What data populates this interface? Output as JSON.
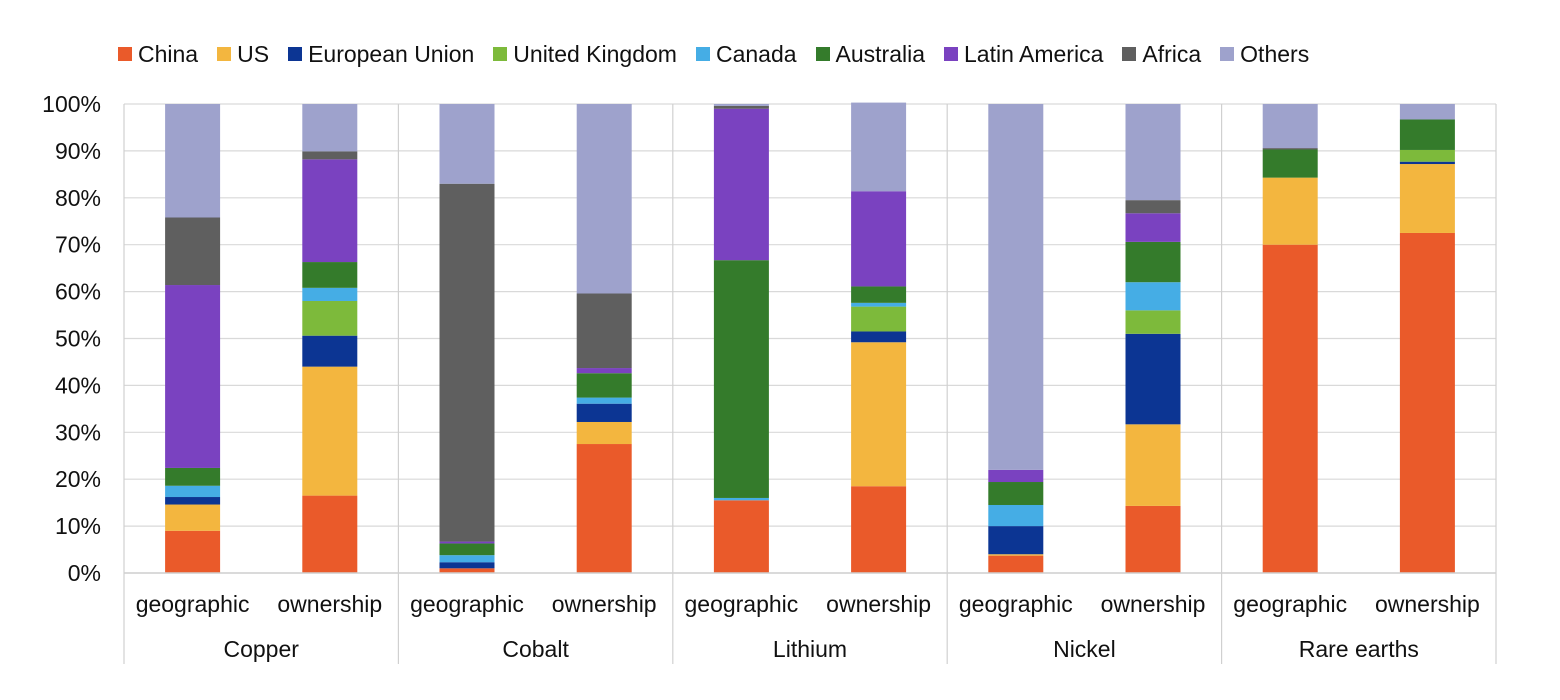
{
  "chart_data": {
    "type": "bar",
    "stacked": true,
    "percent": true,
    "groups": [
      "Copper",
      "Cobalt",
      "Lithium",
      "Nickel",
      "Rare earths"
    ],
    "subcategories": [
      "geographic",
      "ownership"
    ],
    "y_tick_labels": [
      "0%",
      "10%",
      "20%",
      "30%",
      "40%",
      "50%",
      "60%",
      "70%",
      "80%",
      "90%",
      "100%"
    ],
    "ylim": [
      0,
      100
    ],
    "grid": true,
    "legend_position": "top",
    "series": [
      {
        "name": "China",
        "color": "#ea5a2a",
        "values": [
          [
            9,
            16.5
          ],
          [
            1,
            27.5
          ],
          [
            15.5,
            18.5
          ],
          [
            3.7,
            14.3
          ],
          [
            70,
            72.5
          ]
        ]
      },
      {
        "name": "US",
        "color": "#f3b63f",
        "values": [
          [
            5.6,
            27.5
          ],
          [
            0,
            4.7
          ],
          [
            0,
            30.7
          ],
          [
            0.3,
            17.4
          ],
          [
            14.3,
            14.7
          ]
        ]
      },
      {
        "name": "European Union",
        "color": "#0c3593",
        "values": [
          [
            1.6,
            6.6
          ],
          [
            1.3,
            3.9
          ],
          [
            0,
            2.3
          ],
          [
            6,
            19.3
          ],
          [
            0,
            0.5
          ]
        ]
      },
      {
        "name": "United Kingdom",
        "color": "#7dba3b",
        "values": [
          [
            0,
            7.4
          ],
          [
            0,
            0
          ],
          [
            0,
            5.3
          ],
          [
            0,
            5
          ],
          [
            0,
            2.5
          ]
        ]
      },
      {
        "name": "Canada",
        "color": "#45ade5",
        "values": [
          [
            2.4,
            2.8
          ],
          [
            1.5,
            1.3
          ],
          [
            0.5,
            0.8
          ],
          [
            4.5,
            6
          ],
          [
            0,
            0
          ]
        ]
      },
      {
        "name": "Australia",
        "color": "#347b2b",
        "values": [
          [
            3.8,
            5.5
          ],
          [
            2.5,
            5.2
          ],
          [
            50.7,
            3.5
          ],
          [
            4.9,
            8.6
          ],
          [
            6,
            6.5
          ]
        ]
      },
      {
        "name": "Latin America",
        "color": "#7a42c0",
        "values": [
          [
            39,
            21.9
          ],
          [
            0.4,
            1.1
          ],
          [
            32.3,
            20.3
          ],
          [
            2.6,
            6.1
          ],
          [
            0,
            0
          ]
        ]
      },
      {
        "name": "Africa",
        "color": "#5f5f5f",
        "values": [
          [
            14.4,
            1.7
          ],
          [
            76.3,
            15.9
          ],
          [
            0.6,
            0
          ],
          [
            0,
            2.8
          ],
          [
            0.3,
            0
          ]
        ]
      },
      {
        "name": "Others",
        "color": "#9ea2cc",
        "values": [
          [
            24.2,
            10.1
          ],
          [
            17,
            40.4
          ],
          [
            0.4,
            18.9
          ],
          [
            78,
            20.5
          ],
          [
            9.4,
            3.3
          ]
        ]
      }
    ]
  }
}
